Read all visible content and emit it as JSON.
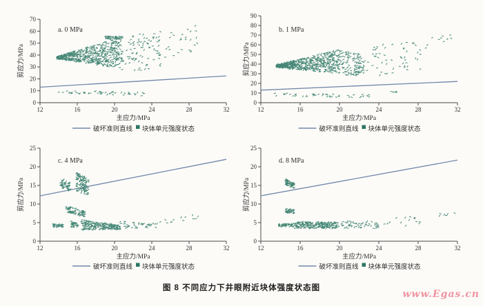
{
  "page": {
    "caption": "图 8  不同应力下井眼附近块体强度状态图",
    "watermark": "www.Egas.cn"
  },
  "colors": {
    "scatter": "#2b7663",
    "criterion_line": "#7187a9",
    "axis": "#4a4a4a",
    "text": "#2f2f2f",
    "watermark_pink": "#f193a0",
    "background": "#fcfbf8"
  },
  "legend": {
    "line_label": "破坏准则直线",
    "scatter_label": "块体单元强度状态"
  },
  "chart_data": [
    {
      "type": "scatter",
      "title": "a. 0 MPa",
      "xlabel": "主应力/MPa",
      "ylabel": "剪应力/MPa",
      "xlim": [
        12,
        32
      ],
      "ylim": [
        0,
        70
      ],
      "xticks": [
        12,
        16,
        20,
        24,
        28,
        32
      ],
      "yticks": [
        0,
        10,
        20,
        30,
        40,
        50,
        60,
        70
      ],
      "legend_position": "bottom",
      "grid": false,
      "line": {
        "name": "破坏准则直线",
        "x": [
          12,
          32
        ],
        "y": [
          13.0,
          22.5
        ]
      },
      "series_name": "块体单元强度状态",
      "clusters": [
        {
          "x": [
            13.8,
            20.8
          ],
          "y_top": [
            38.8,
            55.5
          ],
          "y_bot": [
            36.8,
            28.5
          ],
          "n": 560
        },
        {
          "x": [
            19.0,
            20.9
          ],
          "y_top": [
            55.8,
            55.8
          ],
          "y_bot": [
            53.0,
            53.0
          ],
          "n": 50
        },
        {
          "x": [
            20.8,
            25.0
          ],
          "y_top": [
            56.0,
            60.0
          ],
          "y_bot": [
            26.0,
            27.0
          ],
          "n": 90
        },
        {
          "x": [
            25.0,
            29.2
          ],
          "y_top": [
            62.0,
            66.0
          ],
          "y_bot": [
            26.0,
            40.0
          ],
          "n": 26
        },
        {
          "x": [
            13.8,
            23.5
          ],
          "y_top": [
            10.5,
            8.5
          ],
          "y_bot": [
            8.0,
            5.5
          ],
          "n": 48
        }
      ]
    },
    {
      "type": "scatter",
      "title": "b. 1 MPa",
      "xlabel": "主应力/MPa",
      "ylabel": "剪应力/MPa",
      "xlim": [
        12,
        32
      ],
      "ylim": [
        0,
        90
      ],
      "xticks": [
        12,
        16,
        20,
        24,
        28,
        32
      ],
      "yticks": [
        0,
        10,
        20,
        30,
        40,
        50,
        60,
        70,
        80,
        90
      ],
      "legend_position": "bottom",
      "grid": false,
      "line": {
        "name": "破坏准则直线",
        "x": [
          12,
          32
        ],
        "y": [
          13.0,
          22.0
        ]
      },
      "series_name": "块体单元强度状态",
      "clusters": [
        {
          "x": [
            13.6,
            20.0
          ],
          "y_top": [
            39.5,
            55.5
          ],
          "y_bot": [
            36.5,
            30.0
          ],
          "n": 560
        },
        {
          "x": [
            20.0,
            22.5
          ],
          "y_top": [
            55.0,
            50.0
          ],
          "y_bot": [
            29.0,
            27.0
          ],
          "n": 120
        },
        {
          "x": [
            22.5,
            28.5
          ],
          "y_top": [
            58.0,
            65.0
          ],
          "y_bot": [
            26.0,
            35.0
          ],
          "n": 55
        },
        {
          "x": [
            28.5,
            32.0
          ],
          "y_top": [
            66.0,
            72.0
          ],
          "y_bot": [
            55.0,
            68.0
          ],
          "n": 10
        },
        {
          "x": [
            13.2,
            23.5
          ],
          "y_top": [
            10.0,
            8.5
          ],
          "y_bot": [
            7.0,
            5.0
          ],
          "n": 42
        },
        {
          "x": [
            25.2,
            25.9
          ],
          "y_top": [
            12.0,
            11.5
          ],
          "y_bot": [
            11.0,
            10.5
          ],
          "n": 5
        }
      ]
    },
    {
      "type": "scatter",
      "title": "c. 4 MPa",
      "xlabel": "主应力/MPa",
      "ylabel": "剪应力/MPa",
      "xlim": [
        12,
        32
      ],
      "ylim": [
        0,
        25
      ],
      "xticks": [
        12,
        16,
        20,
        24,
        28,
        32
      ],
      "yticks": [
        0,
        5,
        10,
        15,
        20,
        25
      ],
      "legend_position": "bottom",
      "grid": false,
      "line": {
        "name": "破坏准则直线",
        "x": [
          12,
          32
        ],
        "y": [
          12.2,
          22.0
        ]
      },
      "series_name": "块体单元强度状态",
      "clusters": [
        {
          "x": [
            14.2,
            15.3
          ],
          "y_top": [
            17.0,
            15.6
          ],
          "y_bot": [
            14.6,
            13.0
          ],
          "n": 55
        },
        {
          "x": [
            15.9,
            17.2
          ],
          "y_top": [
            18.5,
            17.0
          ],
          "y_bot": [
            13.4,
            12.4
          ],
          "n": 120
        },
        {
          "x": [
            14.8,
            15.9
          ],
          "y_top": [
            9.4,
            8.8
          ],
          "y_bot": [
            7.8,
            7.2
          ],
          "n": 45
        },
        {
          "x": [
            16.0,
            16.9
          ],
          "y_top": [
            8.7,
            8.0
          ],
          "y_bot": [
            7.0,
            6.5
          ],
          "n": 35
        },
        {
          "x": [
            13.4,
            14.6
          ],
          "y_top": [
            4.7,
            4.5
          ],
          "y_bot": [
            3.8,
            3.7
          ],
          "n": 40
        },
        {
          "x": [
            15.3,
            16.1
          ],
          "y_top": [
            5.4,
            4.9
          ],
          "y_bot": [
            3.8,
            3.7
          ],
          "n": 32
        },
        {
          "x": [
            16.4,
            20.6
          ],
          "y_top": [
            5.8,
            4.3
          ],
          "y_bot": [
            3.1,
            3.1
          ],
          "n": 230
        },
        {
          "x": [
            20.6,
            24.6
          ],
          "y_top": [
            5.4,
            5.0
          ],
          "y_bot": [
            3.4,
            3.6
          ],
          "n": 42
        },
        {
          "x": [
            24.6,
            29.0
          ],
          "y_top": [
            6.2,
            7.2
          ],
          "y_bot": [
            4.0,
            5.6
          ],
          "n": 13
        }
      ]
    },
    {
      "type": "scatter",
      "title": "d. 8 MPa",
      "xlabel": "主应力/MPa",
      "ylabel": "剪应力/MPa",
      "xlim": [
        12,
        32
      ],
      "ylim": [
        0,
        25
      ],
      "xticks": [
        12,
        16,
        20,
        24,
        28,
        32
      ],
      "yticks": [
        0,
        5,
        10,
        15,
        20,
        25
      ],
      "legend_position": "bottom",
      "grid": false,
      "line": {
        "name": "破坏准则直线",
        "x": [
          12,
          32
        ],
        "y": [
          12.2,
          21.8
        ]
      },
      "series_name": "块体单元强度状态",
      "clusters": [
        {
          "x": [
            14.5,
            15.4
          ],
          "y_top": [
            16.8,
            15.6
          ],
          "y_bot": [
            15.2,
            14.2
          ],
          "n": 65
        },
        {
          "x": [
            14.5,
            15.4
          ],
          "y_top": [
            8.9,
            8.4
          ],
          "y_bot": [
            7.7,
            7.3
          ],
          "n": 42
        },
        {
          "x": [
            13.8,
            15.3
          ],
          "y_top": [
            4.6,
            4.7
          ],
          "y_bot": [
            3.9,
            3.9
          ],
          "n": 48
        },
        {
          "x": [
            15.3,
            19.9
          ],
          "y_top": [
            5.3,
            5.1
          ],
          "y_bot": [
            3.5,
            3.4
          ],
          "n": 230
        },
        {
          "x": [
            19.9,
            24.0
          ],
          "y_top": [
            5.7,
            5.2
          ],
          "y_bot": [
            3.3,
            3.4
          ],
          "n": 55
        },
        {
          "x": [
            24.0,
            28.2
          ],
          "y_top": [
            6.4,
            6.6
          ],
          "y_bot": [
            2.6,
            4.4
          ],
          "n": 14
        },
        {
          "x": [
            29.8,
            32.0
          ],
          "y_top": [
            7.5,
            7.9
          ],
          "y_bot": [
            6.6,
            7.1
          ],
          "n": 7
        }
      ]
    }
  ]
}
